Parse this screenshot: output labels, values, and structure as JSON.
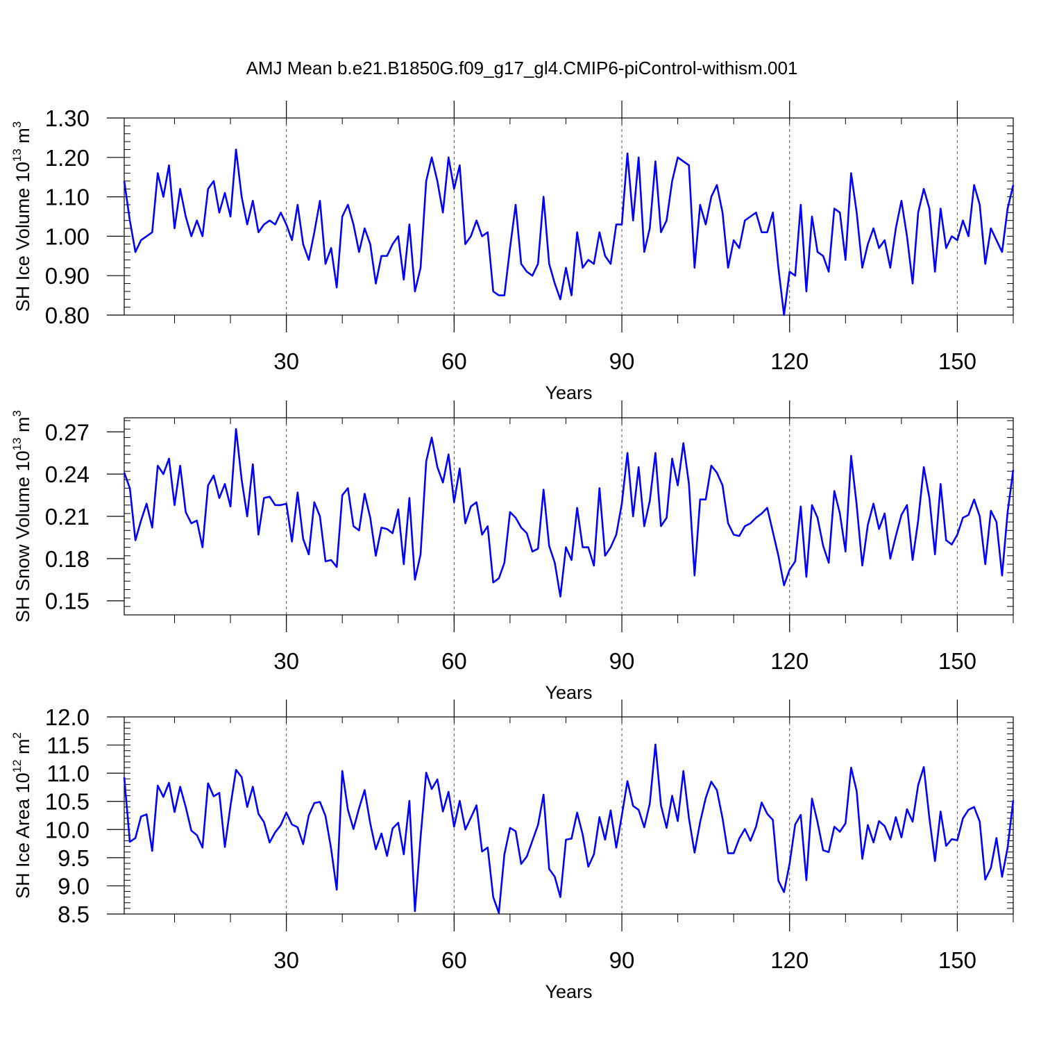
{
  "title": "AMJ Mean b.e21.B1850G.f09_g17_gl4.CMIP6-piControl-withism.001",
  "colors": {
    "series": "#0000ff",
    "axis": "#000000",
    "grid": "#555555"
  },
  "chart_data": [
    {
      "type": "line",
      "ylabel": {
        "text": "SH Ice Volume 10",
        "sup": "13",
        "unit": " m",
        "unit_sup": "3"
      },
      "xlabel": "Years",
      "xlim": [
        1,
        160
      ],
      "ylim": [
        0.8,
        1.3
      ],
      "yticks": [
        0.8,
        0.9,
        1.0,
        1.1,
        1.2,
        1.3
      ],
      "ytick_labels": [
        "0.80",
        "0.90",
        "1.00",
        "1.10",
        "1.20",
        "1.30"
      ],
      "xticks": [
        30,
        60,
        90,
        120,
        150
      ],
      "xtick_labels": [
        "30",
        "60",
        "90",
        "120",
        "150"
      ],
      "grid": "vertical-dashed",
      "series": [
        {
          "values": [
            1.14,
            1.04,
            0.96,
            0.99,
            1.0,
            1.01,
            1.16,
            1.1,
            1.18,
            1.02,
            1.12,
            1.05,
            1.0,
            1.04,
            1.0,
            1.12,
            1.14,
            1.06,
            1.11,
            1.05,
            1.22,
            1.1,
            1.03,
            1.09,
            1.01,
            1.03,
            1.04,
            1.03,
            1.06,
            1.03,
            0.99,
            1.08,
            0.98,
            0.94,
            1.01,
            1.09,
            0.93,
            0.97,
            0.87,
            1.05,
            1.08,
            1.03,
            0.96,
            1.02,
            0.98,
            0.88,
            0.95,
            0.95,
            0.98,
            1.0,
            0.89,
            1.03,
            0.86,
            0.92,
            1.14,
            1.2,
            1.14,
            1.06,
            1.2,
            1.12,
            1.18,
            0.98,
            1.0,
            1.04,
            1.0,
            1.01,
            0.86,
            0.85,
            0.85,
            0.97,
            1.08,
            0.93,
            0.91,
            0.9,
            0.93,
            1.1,
            0.93,
            0.88,
            0.84,
            0.92,
            0.85,
            1.01,
            0.92,
            0.94,
            0.93,
            1.01,
            0.95,
            0.93,
            1.03,
            1.03,
            1.21,
            1.04,
            1.2,
            0.96,
            1.02,
            1.19,
            1.01,
            1.04,
            1.14,
            1.2,
            1.19,
            1.18,
            0.92,
            1.08,
            1.03,
            1.1,
            1.13,
            1.06,
            0.92,
            0.99,
            0.97,
            1.04,
            1.05,
            1.06,
            1.01,
            1.01,
            1.06,
            0.92,
            0.8,
            0.91,
            0.9,
            1.08,
            0.86,
            1.05,
            0.96,
            0.95,
            0.91,
            1.07,
            1.06,
            0.94,
            1.16,
            1.06,
            0.92,
            0.98,
            1.02,
            0.97,
            0.99,
            0.92,
            1.02,
            1.09,
            1.0,
            0.88,
            1.06,
            1.12,
            1.07,
            0.91,
            1.07,
            0.97,
            1.0,
            0.99,
            1.04,
            1.0,
            1.13,
            1.08,
            0.93,
            1.02,
            0.99,
            0.96,
            1.07,
            1.13
          ]
        }
      ]
    },
    {
      "type": "line",
      "ylabel": {
        "text": "SH Snow Volume 10",
        "sup": "13",
        "unit": " m",
        "unit_sup": "3"
      },
      "xlabel": "Years",
      "xlim": [
        1,
        160
      ],
      "ylim": [
        0.14,
        0.28
      ],
      "yticks": [
        0.15,
        0.18,
        0.21,
        0.24,
        0.27
      ],
      "ytick_labels": [
        "0.15",
        "0.18",
        "0.21",
        "0.24",
        "0.27"
      ],
      "xticks": [
        30,
        60,
        90,
        120,
        150
      ],
      "xtick_labels": [
        "30",
        "60",
        "90",
        "120",
        "150"
      ],
      "grid": "vertical-dashed",
      "series": [
        {
          "values": [
            0.241,
            0.23,
            0.193,
            0.207,
            0.219,
            0.202,
            0.246,
            0.24,
            0.251,
            0.218,
            0.246,
            0.213,
            0.205,
            0.207,
            0.188,
            0.232,
            0.239,
            0.223,
            0.233,
            0.217,
            0.272,
            0.236,
            0.21,
            0.247,
            0.197,
            0.223,
            0.224,
            0.218,
            0.218,
            0.219,
            0.192,
            0.227,
            0.194,
            0.183,
            0.22,
            0.21,
            0.178,
            0.179,
            0.174,
            0.225,
            0.23,
            0.203,
            0.2,
            0.226,
            0.209,
            0.182,
            0.202,
            0.201,
            0.198,
            0.215,
            0.176,
            0.223,
            0.165,
            0.183,
            0.249,
            0.266,
            0.245,
            0.234,
            0.254,
            0.22,
            0.244,
            0.205,
            0.217,
            0.22,
            0.197,
            0.203,
            0.163,
            0.166,
            0.177,
            0.213,
            0.209,
            0.202,
            0.198,
            0.185,
            0.187,
            0.229,
            0.189,
            0.177,
            0.153,
            0.188,
            0.179,
            0.216,
            0.188,
            0.188,
            0.175,
            0.23,
            0.182,
            0.188,
            0.197,
            0.219,
            0.255,
            0.21,
            0.245,
            0.203,
            0.221,
            0.255,
            0.203,
            0.209,
            0.251,
            0.232,
            0.262,
            0.233,
            0.168,
            0.222,
            0.222,
            0.246,
            0.241,
            0.232,
            0.205,
            0.197,
            0.196,
            0.203,
            0.205,
            0.209,
            0.212,
            0.216,
            0.199,
            0.182,
            0.161,
            0.172,
            0.178,
            0.217,
            0.167,
            0.218,
            0.209,
            0.189,
            0.177,
            0.228,
            0.212,
            0.185,
            0.253,
            0.218,
            0.175,
            0.204,
            0.219,
            0.201,
            0.212,
            0.18,
            0.196,
            0.211,
            0.218,
            0.179,
            0.207,
            0.245,
            0.223,
            0.183,
            0.233,
            0.193,
            0.19,
            0.197,
            0.209,
            0.211,
            0.222,
            0.21,
            0.176,
            0.214,
            0.206,
            0.168,
            0.213,
            0.243
          ]
        }
      ]
    },
    {
      "type": "line",
      "ylabel": {
        "text": "SH Ice Area 10",
        "sup": "12",
        "unit": " m",
        "unit_sup": "2"
      },
      "xlabel": "Years",
      "xlim": [
        1,
        160
      ],
      "ylim": [
        8.5,
        12.0
      ],
      "yticks": [
        8.5,
        9.0,
        9.5,
        10.0,
        10.5,
        11.0,
        11.5,
        12.0
      ],
      "ytick_labels": [
        "8.5",
        "9.0",
        "9.5",
        "10.0",
        "10.5",
        "11.0",
        "11.5",
        "12.0"
      ],
      "xticks": [
        30,
        60,
        90,
        120,
        150
      ],
      "xtick_labels": [
        "30",
        "60",
        "90",
        "120",
        "150"
      ],
      "grid": "vertical-dashed",
      "series": [
        {
          "values": [
            10.93,
            9.78,
            9.85,
            10.23,
            10.27,
            9.62,
            10.78,
            10.58,
            10.83,
            10.31,
            10.76,
            10.4,
            9.98,
            9.9,
            9.68,
            10.82,
            10.59,
            10.65,
            9.69,
            10.42,
            11.06,
            10.93,
            10.4,
            10.76,
            10.28,
            10.13,
            9.77,
            9.95,
            10.08,
            10.3,
            10.09,
            10.04,
            9.74,
            10.25,
            10.47,
            10.49,
            10.24,
            9.66,
            8.93,
            11.04,
            10.35,
            10.01,
            10.38,
            10.7,
            10.11,
            9.65,
            9.93,
            9.53,
            10.02,
            10.12,
            9.56,
            10.51,
            8.55,
            9.86,
            11.01,
            10.72,
            10.89,
            10.32,
            10.67,
            10.05,
            10.51,
            10.0,
            10.21,
            10.43,
            9.61,
            9.68,
            8.8,
            8.52,
            9.56,
            10.03,
            9.97,
            9.39,
            9.52,
            9.8,
            10.08,
            10.62,
            9.3,
            9.16,
            8.8,
            9.82,
            9.84,
            10.3,
            9.91,
            9.34,
            9.56,
            10.22,
            9.82,
            10.34,
            9.68,
            10.25,
            10.86,
            10.42,
            10.35,
            10.04,
            10.46,
            11.51,
            10.43,
            10.03,
            10.6,
            10.15,
            11.04,
            10.2,
            9.59,
            10.13,
            10.56,
            10.85,
            10.7,
            10.2,
            9.58,
            9.58,
            9.84,
            10.01,
            9.8,
            10.05,
            10.48,
            10.28,
            10.17,
            9.09,
            8.89,
            9.39,
            10.09,
            10.26,
            9.1,
            10.55,
            10.13,
            9.63,
            9.6,
            10.05,
            9.96,
            10.11,
            11.1,
            10.68,
            9.48,
            10.08,
            9.77,
            10.15,
            10.06,
            9.82,
            10.22,
            9.86,
            10.36,
            10.14,
            10.79,
            11.11,
            10.2,
            9.44,
            10.32,
            9.71,
            9.83,
            9.81,
            10.2,
            10.35,
            10.4,
            10.14,
            9.11,
            9.32,
            9.85,
            9.16,
            9.68,
            10.52
          ]
        }
      ]
    }
  ]
}
